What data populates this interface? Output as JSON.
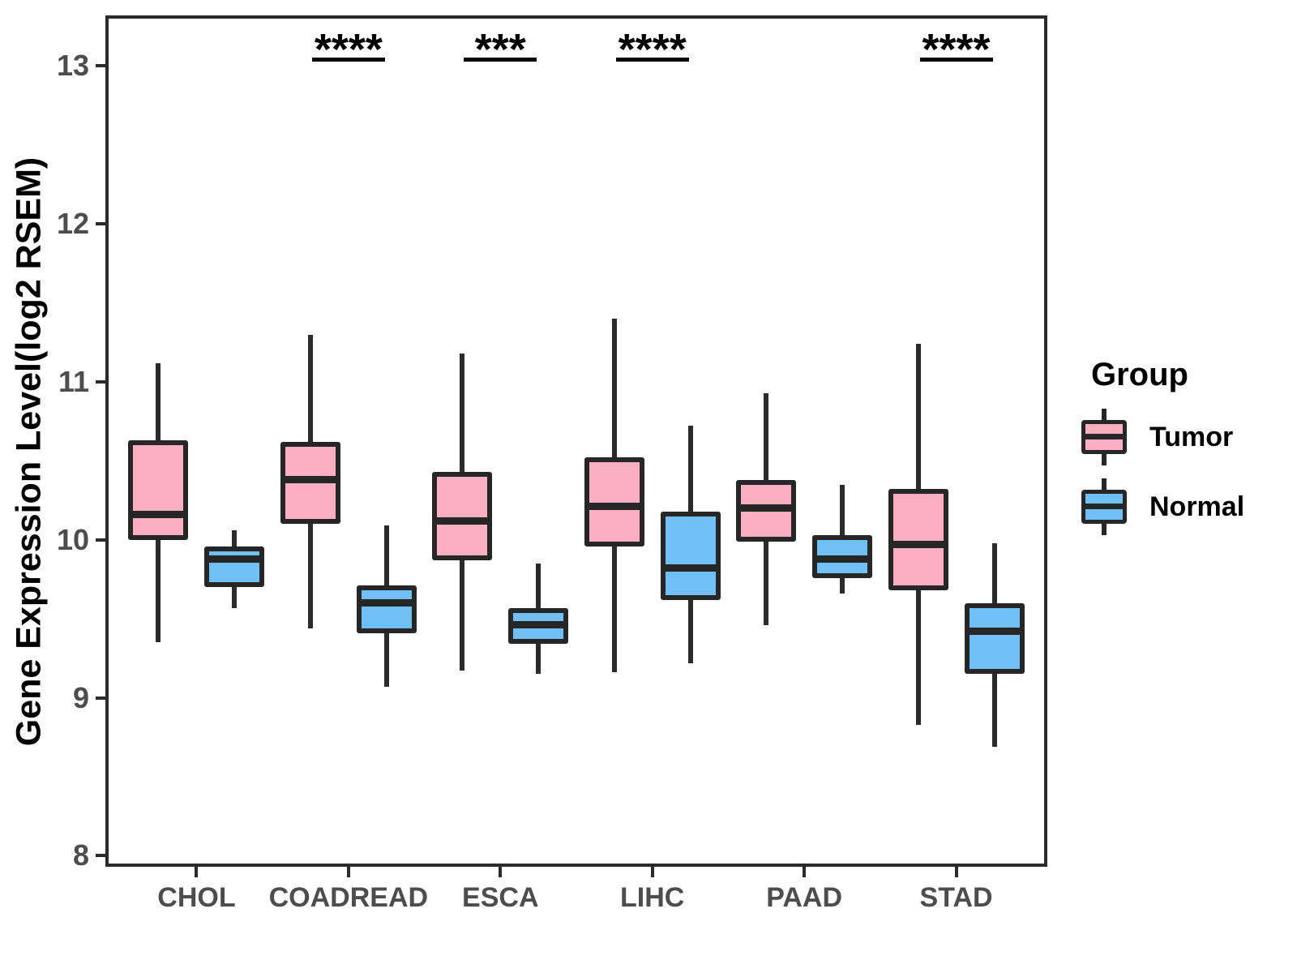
{
  "chart_data": {
    "type": "boxplot",
    "title": "",
    "xlabel": "",
    "ylabel": "Gene Expression Level(log2 RSEM)",
    "categories": [
      "CHOL",
      "COADREAD",
      "ESCA",
      "LIHC",
      "PAAD",
      "STAD"
    ],
    "y_ticks": [
      8,
      9,
      10,
      11,
      12,
      13
    ],
    "ylim": [
      7.93,
      13.32
    ],
    "grid": "off",
    "legend_position": "right",
    "legend": {
      "title": "Group",
      "entries": [
        {
          "label": "Tumor",
          "color": "#fbafc1"
        },
        {
          "label": "Normal",
          "color": "#70bff5"
        }
      ]
    },
    "series": [
      {
        "name": "Tumor",
        "fill": "#fbafc1",
        "boxes": [
          {
            "category": "CHOL",
            "whisker_low": 9.35,
            "q1": 10.0,
            "median": 10.16,
            "q3": 10.63,
            "whisker_high": 11.12
          },
          {
            "category": "COADREAD",
            "whisker_low": 9.44,
            "q1": 10.1,
            "median": 10.38,
            "q3": 10.62,
            "whisker_high": 11.3
          },
          {
            "category": "ESCA",
            "whisker_low": 9.17,
            "q1": 9.87,
            "median": 10.12,
            "q3": 10.43,
            "whisker_high": 11.18
          },
          {
            "category": "LIHC",
            "whisker_low": 9.16,
            "q1": 9.96,
            "median": 10.21,
            "q3": 10.52,
            "whisker_high": 11.4
          },
          {
            "category": "PAAD",
            "whisker_low": 9.46,
            "q1": 9.99,
            "median": 10.2,
            "q3": 10.38,
            "whisker_high": 10.93
          },
          {
            "category": "STAD",
            "whisker_low": 8.83,
            "q1": 9.68,
            "median": 9.97,
            "q3": 10.32,
            "whisker_high": 11.24
          }
        ]
      },
      {
        "name": "Normal",
        "fill": "#70bff5",
        "boxes": [
          {
            "category": "CHOL",
            "whisker_low": 9.57,
            "q1": 9.7,
            "median": 9.88,
            "q3": 9.96,
            "whisker_high": 10.06
          },
          {
            "category": "COADREAD",
            "whisker_low": 9.07,
            "q1": 9.41,
            "median": 9.6,
            "q3": 9.71,
            "whisker_high": 10.09
          },
          {
            "category": "ESCA",
            "whisker_low": 9.15,
            "q1": 9.34,
            "median": 9.46,
            "q3": 9.57,
            "whisker_high": 9.85
          },
          {
            "category": "LIHC",
            "whisker_low": 9.22,
            "q1": 9.62,
            "median": 9.82,
            "q3": 10.18,
            "whisker_high": 10.72
          },
          {
            "category": "PAAD",
            "whisker_low": 9.66,
            "q1": 9.76,
            "median": 9.88,
            "q3": 10.03,
            "whisker_high": 10.35
          },
          {
            "category": "STAD",
            "whisker_low": 8.69,
            "q1": 9.15,
            "median": 9.42,
            "q3": 9.6,
            "whisker_high": 9.98
          }
        ]
      }
    ],
    "significance": [
      {
        "category": "COADREAD",
        "label": "****"
      },
      {
        "category": "ESCA",
        "label": "***"
      },
      {
        "category": "LIHC",
        "label": "****"
      },
      {
        "category": "STAD",
        "label": "****"
      }
    ],
    "colors": {
      "box_border": "#262626",
      "panel_border": "#2b2b2b",
      "tick_label": "#4d4d4d",
      "text": "#000000"
    }
  }
}
